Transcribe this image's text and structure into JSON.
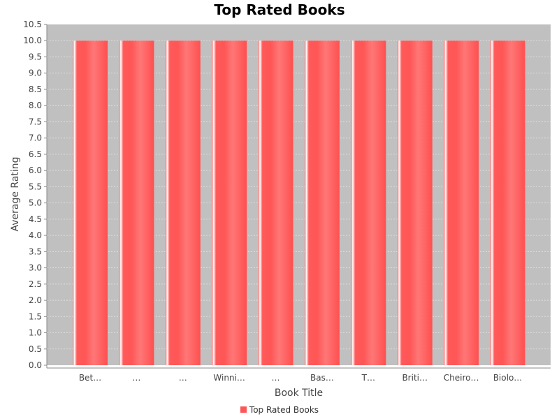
{
  "chart_data": {
    "type": "bar",
    "title": "Top Rated Books",
    "xlabel": "Book Title",
    "ylabel": "Average Rating",
    "categories": [
      "Bet…",
      "…",
      "…",
      "Winni…",
      "…",
      "Bas…",
      "T…",
      "Briti…",
      "Cheiro…",
      "Biolo…"
    ],
    "values": [
      10.0,
      10.0,
      10.0,
      10.0,
      10.0,
      10.0,
      10.0,
      10.0,
      10.0,
      10.0
    ],
    "ylim": [
      0,
      10.5
    ],
    "ytick_step": 0.5,
    "grid": true,
    "legend": {
      "position": "bottom",
      "entries": [
        "Top Rated Books"
      ]
    },
    "colors": {
      "bar": "#ff5555",
      "plot_background": "#c0c0c0",
      "gridline": "#e6e6e6"
    }
  }
}
